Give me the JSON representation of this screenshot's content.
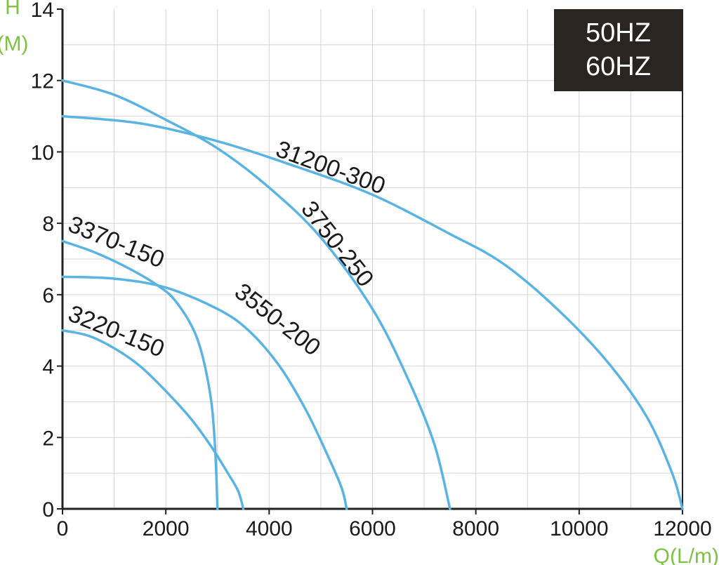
{
  "chart_data": {
    "type": "line",
    "xlabel": "Q(L/m)",
    "ylabel_top": "H",
    "ylabel_bottom": "(M)",
    "xlim": [
      0,
      12000
    ],
    "ylim": [
      0,
      14
    ],
    "x_ticks": [
      0,
      2000,
      4000,
      6000,
      8000,
      10000,
      12000
    ],
    "y_ticks": [
      0,
      2,
      4,
      6,
      8,
      10,
      12,
      14
    ],
    "grid": true,
    "legend_box": {
      "lines": [
        "50HZ",
        "60HZ"
      ],
      "placement": "top-right",
      "background": "#2b2522"
    },
    "series_color": "#5ab4e3",
    "series": [
      {
        "name": "31200-300",
        "points": [
          [
            0,
            11.0
          ],
          [
            1500,
            10.8
          ],
          [
            3000,
            10.3
          ],
          [
            4500,
            9.6
          ],
          [
            6000,
            8.8
          ],
          [
            7500,
            7.7
          ],
          [
            8500,
            6.9
          ],
          [
            9500,
            5.7
          ],
          [
            10500,
            4.2
          ],
          [
            11300,
            2.6
          ],
          [
            11800,
            1.0
          ],
          [
            12000,
            0
          ]
        ]
      },
      {
        "name": "3750-250",
        "points": [
          [
            0,
            12.0
          ],
          [
            1000,
            11.6
          ],
          [
            2000,
            10.9
          ],
          [
            3000,
            10.1
          ],
          [
            4000,
            9.0
          ],
          [
            5000,
            7.6
          ],
          [
            6000,
            5.6
          ],
          [
            6700,
            3.6
          ],
          [
            7200,
            1.8
          ],
          [
            7500,
            0
          ]
        ]
      },
      {
        "name": "3370-150",
        "points": [
          [
            0,
            7.5
          ],
          [
            600,
            7.2
          ],
          [
            1200,
            6.8
          ],
          [
            1800,
            6.3
          ],
          [
            2200,
            5.8
          ],
          [
            2600,
            4.8
          ],
          [
            2850,
            3.3
          ],
          [
            2950,
            1.8
          ],
          [
            3000,
            0
          ]
        ]
      },
      {
        "name": "3550-200",
        "points": [
          [
            0,
            6.5
          ],
          [
            1000,
            6.45
          ],
          [
            2000,
            6.2
          ],
          [
            3000,
            5.6
          ],
          [
            3600,
            5.0
          ],
          [
            4200,
            4.0
          ],
          [
            4700,
            2.8
          ],
          [
            5100,
            1.6
          ],
          [
            5400,
            0.6
          ],
          [
            5500,
            0
          ]
        ]
      },
      {
        "name": "3220-150",
        "points": [
          [
            0,
            5.0
          ],
          [
            500,
            4.85
          ],
          [
            1000,
            4.5
          ],
          [
            1500,
            4.0
          ],
          [
            2000,
            3.3
          ],
          [
            2500,
            2.5
          ],
          [
            2900,
            1.7
          ],
          [
            3200,
            1.0
          ],
          [
            3400,
            0.5
          ],
          [
            3500,
            0
          ]
        ]
      }
    ],
    "curve_labels": [
      {
        "text": "31200-300",
        "x": 4100,
        "y": 9.9,
        "angle": 20
      },
      {
        "text": "3750-250",
        "x": 4600,
        "y": 8.4,
        "angle": 52
      },
      {
        "text": "3370-150",
        "x": 80,
        "y": 7.8,
        "angle": 22
      },
      {
        "text": "3550-200",
        "x": 3300,
        "y": 6.0,
        "angle": 38
      },
      {
        "text": "3220-150",
        "x": 80,
        "y": 5.3,
        "angle": 22
      }
    ]
  }
}
